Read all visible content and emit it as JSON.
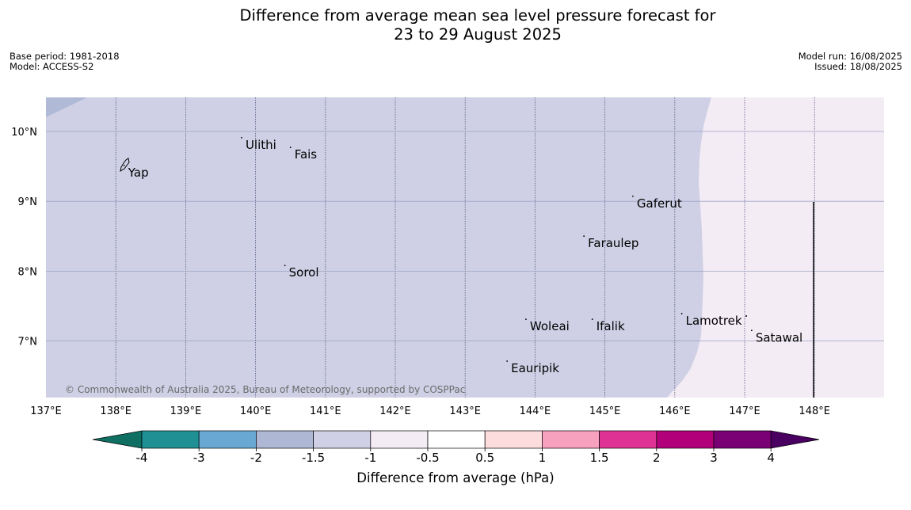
{
  "title": {
    "line1": "Difference from average mean sea level pressure forecast for",
    "line2": "23 to 29 August 2025"
  },
  "meta_left": {
    "base_period": "Base period: 1981-2018",
    "model": "Model: ACCESS-S2"
  },
  "meta_right": {
    "model_run": "Model run: 16/08/2025",
    "issued": "Issued: 18/08/2025"
  },
  "map": {
    "lon_range": [
      137,
      149
    ],
    "lat_range": [
      6.2,
      10.5
    ],
    "lon_ticks": [
      137,
      138,
      139,
      140,
      141,
      142,
      143,
      144,
      145,
      146,
      147,
      148
    ],
    "lon_tick_labels": [
      "137°E",
      "138°E",
      "139°E",
      "140°E",
      "141°E",
      "142°E",
      "143°E",
      "144°E",
      "145°E",
      "146°E",
      "147°E",
      "148°E"
    ],
    "lat_ticks": [
      10,
      9,
      8,
      7
    ],
    "lat_tick_labels": [
      "10°N",
      "9°N",
      "8°N",
      "7°N"
    ],
    "places": [
      {
        "name": "Ulithi",
        "lon": 139.8,
        "lat": 9.9
      },
      {
        "name": "Fais",
        "lon": 140.5,
        "lat": 9.76
      },
      {
        "name": "Yap",
        "lon": 138.12,
        "lat": 9.5
      },
      {
        "name": "Gaferut",
        "lon": 145.4,
        "lat": 9.06
      },
      {
        "name": "Faraulep",
        "lon": 144.7,
        "lat": 8.49
      },
      {
        "name": "Sorol",
        "lon": 140.42,
        "lat": 8.07
      },
      {
        "name": "Lamotrek",
        "lon": 146.1,
        "lat": 7.38
      },
      {
        "name": "Woleai",
        "lon": 143.87,
        "lat": 7.3
      },
      {
        "name": "Ifalik",
        "lon": 144.82,
        "lat": 7.3
      },
      {
        "name": "Satawal",
        "lon": 147.1,
        "lat": 7.14
      },
      {
        "name": "Eauripik",
        "lon": 143.6,
        "lat": 6.7
      }
    ],
    "copyright": "© Commonwealth of Australia 2025, Bureau of Meteorology, supported by COSPPac",
    "field_colors": {
      "light_blue": "#cfd0e5",
      "lightest_pink": "#f4ecf5",
      "blue_patch": "#b0b9d6"
    }
  },
  "colorbar": {
    "label": "Difference from average (hPa)",
    "tick_labels": [
      "-4",
      "-3",
      "-2",
      "-1.5",
      "-1",
      "-0.5",
      "0.5",
      "1",
      "1.5",
      "2",
      "3",
      "4"
    ],
    "colors": [
      "#0f6f63",
      "#1f9093",
      "#68a8d3",
      "#aeb8d5",
      "#cfd0e5",
      "#f4ecf5",
      "#ffffff",
      "#fddcdd",
      "#f7a1be",
      "#df3295",
      "#b1007a",
      "#7a0075",
      "#4a0060"
    ]
  }
}
